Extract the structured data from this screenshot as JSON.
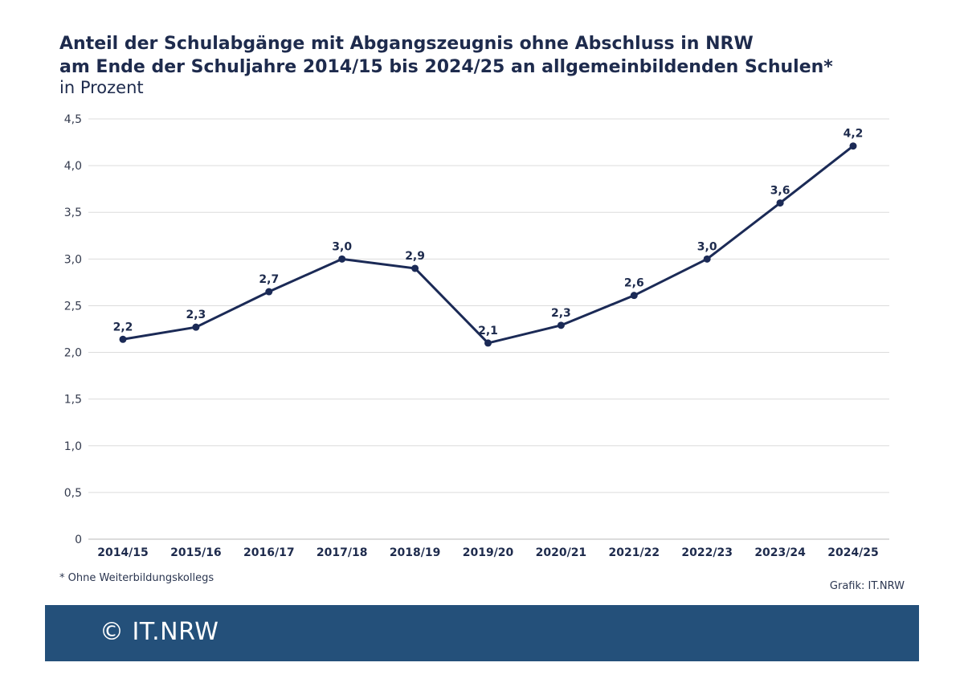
{
  "header": {
    "title_line1": "Anteil der Schulabgänge mit Abgangszeugnis ohne Abschluss in NRW",
    "title_line2": "am Ende der Schuljahre 2014/15 bis 2024/25 an allgemeinbildenden Schulen*",
    "subtitle": "in Prozent"
  },
  "footnote": "*  Ohne Weiterbildungskollegs",
  "source": "Grafik: IT.NRW",
  "banner": {
    "text": "© IT.NRW"
  },
  "colors": {
    "line": "#1b2a56",
    "grid": "#dcdcdc",
    "banner": "#24507a"
  },
  "chart_data": {
    "type": "line",
    "categories": [
      "2014/15",
      "2015/16",
      "2016/17",
      "2017/18",
      "2018/19",
      "2019/20",
      "2020/21",
      "2021/22",
      "2022/23",
      "2023/24",
      "2024/25"
    ],
    "values": [
      2.2,
      2.3,
      2.7,
      3.0,
      2.9,
      2.1,
      2.3,
      2.6,
      3.0,
      3.6,
      4.2
    ],
    "point_positions": [
      2.14,
      2.27,
      2.65,
      3.0,
      2.9,
      2.1,
      2.29,
      2.61,
      3.0,
      3.6,
      4.21
    ],
    "labels": [
      "2,2",
      "2,3",
      "2,7",
      "3,0",
      "2,9",
      "2,1",
      "2,3",
      "2,6",
      "3,0",
      "3,6",
      "4,2"
    ],
    "yticks": [
      0,
      0.5,
      1.0,
      1.5,
      2.0,
      2.5,
      3.0,
      3.5,
      4.0,
      4.5
    ],
    "ytick_labels": [
      "0",
      "0,5",
      "1,0",
      "1,5",
      "2,0",
      "2,5",
      "3,0",
      "3,5",
      "4,0",
      "4,5"
    ],
    "ylim": [
      0,
      4.5
    ],
    "grid": true,
    "legend": "none",
    "xlabel": "",
    "ylabel": ""
  }
}
